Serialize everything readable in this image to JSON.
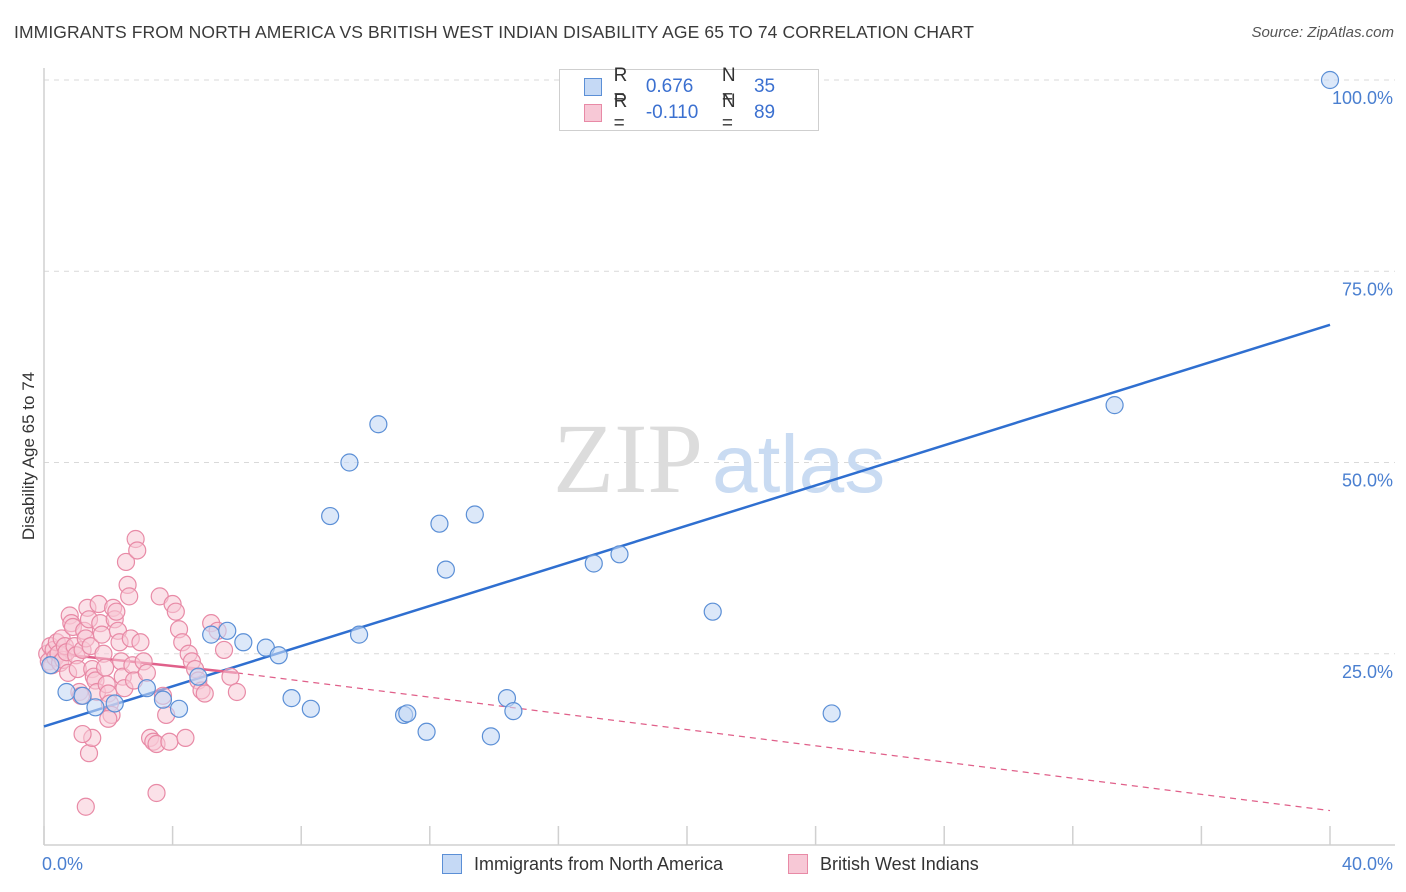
{
  "title": "IMMIGRANTS FROM NORTH AMERICA VS BRITISH WEST INDIAN DISABILITY AGE 65 TO 74 CORRELATION CHART",
  "source": "Source: ZipAtlas.com",
  "watermark": {
    "zip": "ZIP",
    "atlas": "atlas"
  },
  "legend": {
    "rows": [
      {
        "r_label": "R =",
        "r_value": "0.676",
        "n_label": "N =",
        "n_value": "35"
      },
      {
        "r_label": "R =",
        "r_value": "-0.110",
        "n_label": "N =",
        "n_value": "89"
      }
    ]
  },
  "bottom_legend": [
    "Immigrants from North America",
    "British West Indians"
  ],
  "colors": {
    "blue_fill": "#c5d9f5",
    "blue_stroke": "#5b8fd6",
    "blue_line": "#2f6fd0",
    "pink_fill": "#f7c8d6",
    "pink_stroke": "#e88aa6",
    "pink_line": "#e0608a",
    "axis_text": "#4a7fd0",
    "grid": "#d9d9d9"
  },
  "chart_data": {
    "type": "scatter",
    "title": "IMMIGRANTS FROM NORTH AMERICA VS BRITISH WEST INDIAN DISABILITY AGE 65 TO 74 CORRELATION CHART",
    "xlabel": "",
    "ylabel": "Disability Age 65 to 74",
    "xlim": [
      0,
      40
    ],
    "ylim": [
      0,
      100
    ],
    "x_tick_labels": [
      "0.0%",
      "40.0%"
    ],
    "y_tick_labels": [
      "25.0%",
      "50.0%",
      "75.0%",
      "100.0%"
    ],
    "y_ticks": [
      25,
      50,
      75,
      100
    ],
    "grid": "horizontal dashed",
    "legend_position": "top-center",
    "series": [
      {
        "name": "Immigrants from North America",
        "color": "#5b8fd6",
        "trend": {
          "x": [
            0,
            40
          ],
          "y": [
            15.5,
            68
          ]
        },
        "points": [
          [
            0.2,
            23.5
          ],
          [
            0.7,
            20
          ],
          [
            1.2,
            19.5
          ],
          [
            1.6,
            18
          ],
          [
            2.2,
            18.5
          ],
          [
            3.2,
            20.5
          ],
          [
            3.7,
            19
          ],
          [
            4.2,
            17.8
          ],
          [
            4.8,
            22
          ],
          [
            5.2,
            27.5
          ],
          [
            5.7,
            28
          ],
          [
            6.2,
            26.5
          ],
          [
            6.9,
            25.8
          ],
          [
            7.3,
            24.8
          ],
          [
            7.7,
            19.2
          ],
          [
            8.3,
            17.8
          ],
          [
            8.9,
            43
          ],
          [
            9.5,
            50
          ],
          [
            9.8,
            27.5
          ],
          [
            10.4,
            55
          ],
          [
            11.2,
            17
          ],
          [
            11.3,
            17.2
          ],
          [
            11.9,
            14.8
          ],
          [
            12.3,
            42
          ],
          [
            12.5,
            36
          ],
          [
            13.4,
            43.2
          ],
          [
            13.9,
            14.2
          ],
          [
            14.4,
            19.2
          ],
          [
            14.6,
            17.5
          ],
          [
            17.1,
            36.8
          ],
          [
            17.9,
            38
          ],
          [
            20.8,
            30.5
          ],
          [
            24.5,
            17.2
          ],
          [
            33.3,
            57.5
          ],
          [
            40.0,
            100.0
          ]
        ]
      },
      {
        "name": "British West Indians",
        "color": "#e88aa6",
        "trend_solid": {
          "x": [
            0,
            6
          ],
          "y": [
            25.2,
            22.5
          ]
        },
        "trend_dashed": {
          "x": [
            6,
            40
          ],
          "y": [
            22.5,
            4.5
          ]
        },
        "points": [
          [
            0.1,
            25
          ],
          [
            0.15,
            24
          ],
          [
            0.2,
            26
          ],
          [
            0.25,
            23.5
          ],
          [
            0.3,
            25.5
          ],
          [
            0.35,
            24.5
          ],
          [
            0.4,
            26.5
          ],
          [
            0.45,
            25
          ],
          [
            0.5,
            23.8
          ],
          [
            0.55,
            27
          ],
          [
            0.6,
            24.2
          ],
          [
            0.65,
            26
          ],
          [
            0.7,
            25.2
          ],
          [
            0.75,
            22.5
          ],
          [
            0.8,
            30
          ],
          [
            0.85,
            29
          ],
          [
            0.9,
            28.5
          ],
          [
            0.95,
            26
          ],
          [
            1.0,
            24.8
          ],
          [
            1.05,
            23
          ],
          [
            1.1,
            20
          ],
          [
            1.15,
            19.5
          ],
          [
            1.2,
            25.5
          ],
          [
            1.25,
            28
          ],
          [
            1.3,
            27
          ],
          [
            1.35,
            31
          ],
          [
            1.4,
            29.5
          ],
          [
            1.45,
            26
          ],
          [
            1.5,
            23
          ],
          [
            1.55,
            22
          ],
          [
            1.6,
            21.5
          ],
          [
            1.65,
            20
          ],
          [
            1.7,
            31.5
          ],
          [
            1.75,
            29
          ],
          [
            1.8,
            27.5
          ],
          [
            1.85,
            25
          ],
          [
            1.9,
            23.2
          ],
          [
            1.95,
            21
          ],
          [
            2.0,
            19.8
          ],
          [
            2.05,
            18.5
          ],
          [
            2.1,
            17
          ],
          [
            2.15,
            31
          ],
          [
            2.2,
            29.5
          ],
          [
            2.25,
            30.5
          ],
          [
            2.3,
            28
          ],
          [
            2.35,
            26.5
          ],
          [
            2.4,
            24
          ],
          [
            2.45,
            22
          ],
          [
            2.5,
            20.5
          ],
          [
            2.55,
            37
          ],
          [
            2.6,
            34
          ],
          [
            2.65,
            32.5
          ],
          [
            2.7,
            27
          ],
          [
            2.75,
            23.5
          ],
          [
            2.8,
            21.5
          ],
          [
            2.85,
            40
          ],
          [
            2.9,
            38.5
          ],
          [
            3.0,
            26.5
          ],
          [
            3.1,
            24
          ],
          [
            3.2,
            22.5
          ],
          [
            3.3,
            14
          ],
          [
            3.4,
            13.5
          ],
          [
            3.5,
            13.2
          ],
          [
            3.6,
            32.5
          ],
          [
            3.7,
            19.5
          ],
          [
            3.8,
            17
          ],
          [
            3.9,
            13.5
          ],
          [
            4.0,
            31.5
          ],
          [
            4.1,
            30.5
          ],
          [
            4.2,
            28.2
          ],
          [
            4.3,
            26.5
          ],
          [
            4.4,
            14
          ],
          [
            4.5,
            25
          ],
          [
            4.6,
            24
          ],
          [
            4.7,
            23
          ],
          [
            4.8,
            21.5
          ],
          [
            4.9,
            20.2
          ],
          [
            5.0,
            19.8
          ],
          [
            5.2,
            29
          ],
          [
            5.4,
            28
          ],
          [
            5.6,
            25.5
          ],
          [
            5.8,
            22
          ],
          [
            6.0,
            20
          ],
          [
            1.3,
            5
          ],
          [
            3.5,
            6.8
          ],
          [
            1.4,
            12
          ],
          [
            1.5,
            14
          ],
          [
            2.0,
            16.5
          ],
          [
            1.2,
            14.5
          ]
        ]
      }
    ]
  }
}
